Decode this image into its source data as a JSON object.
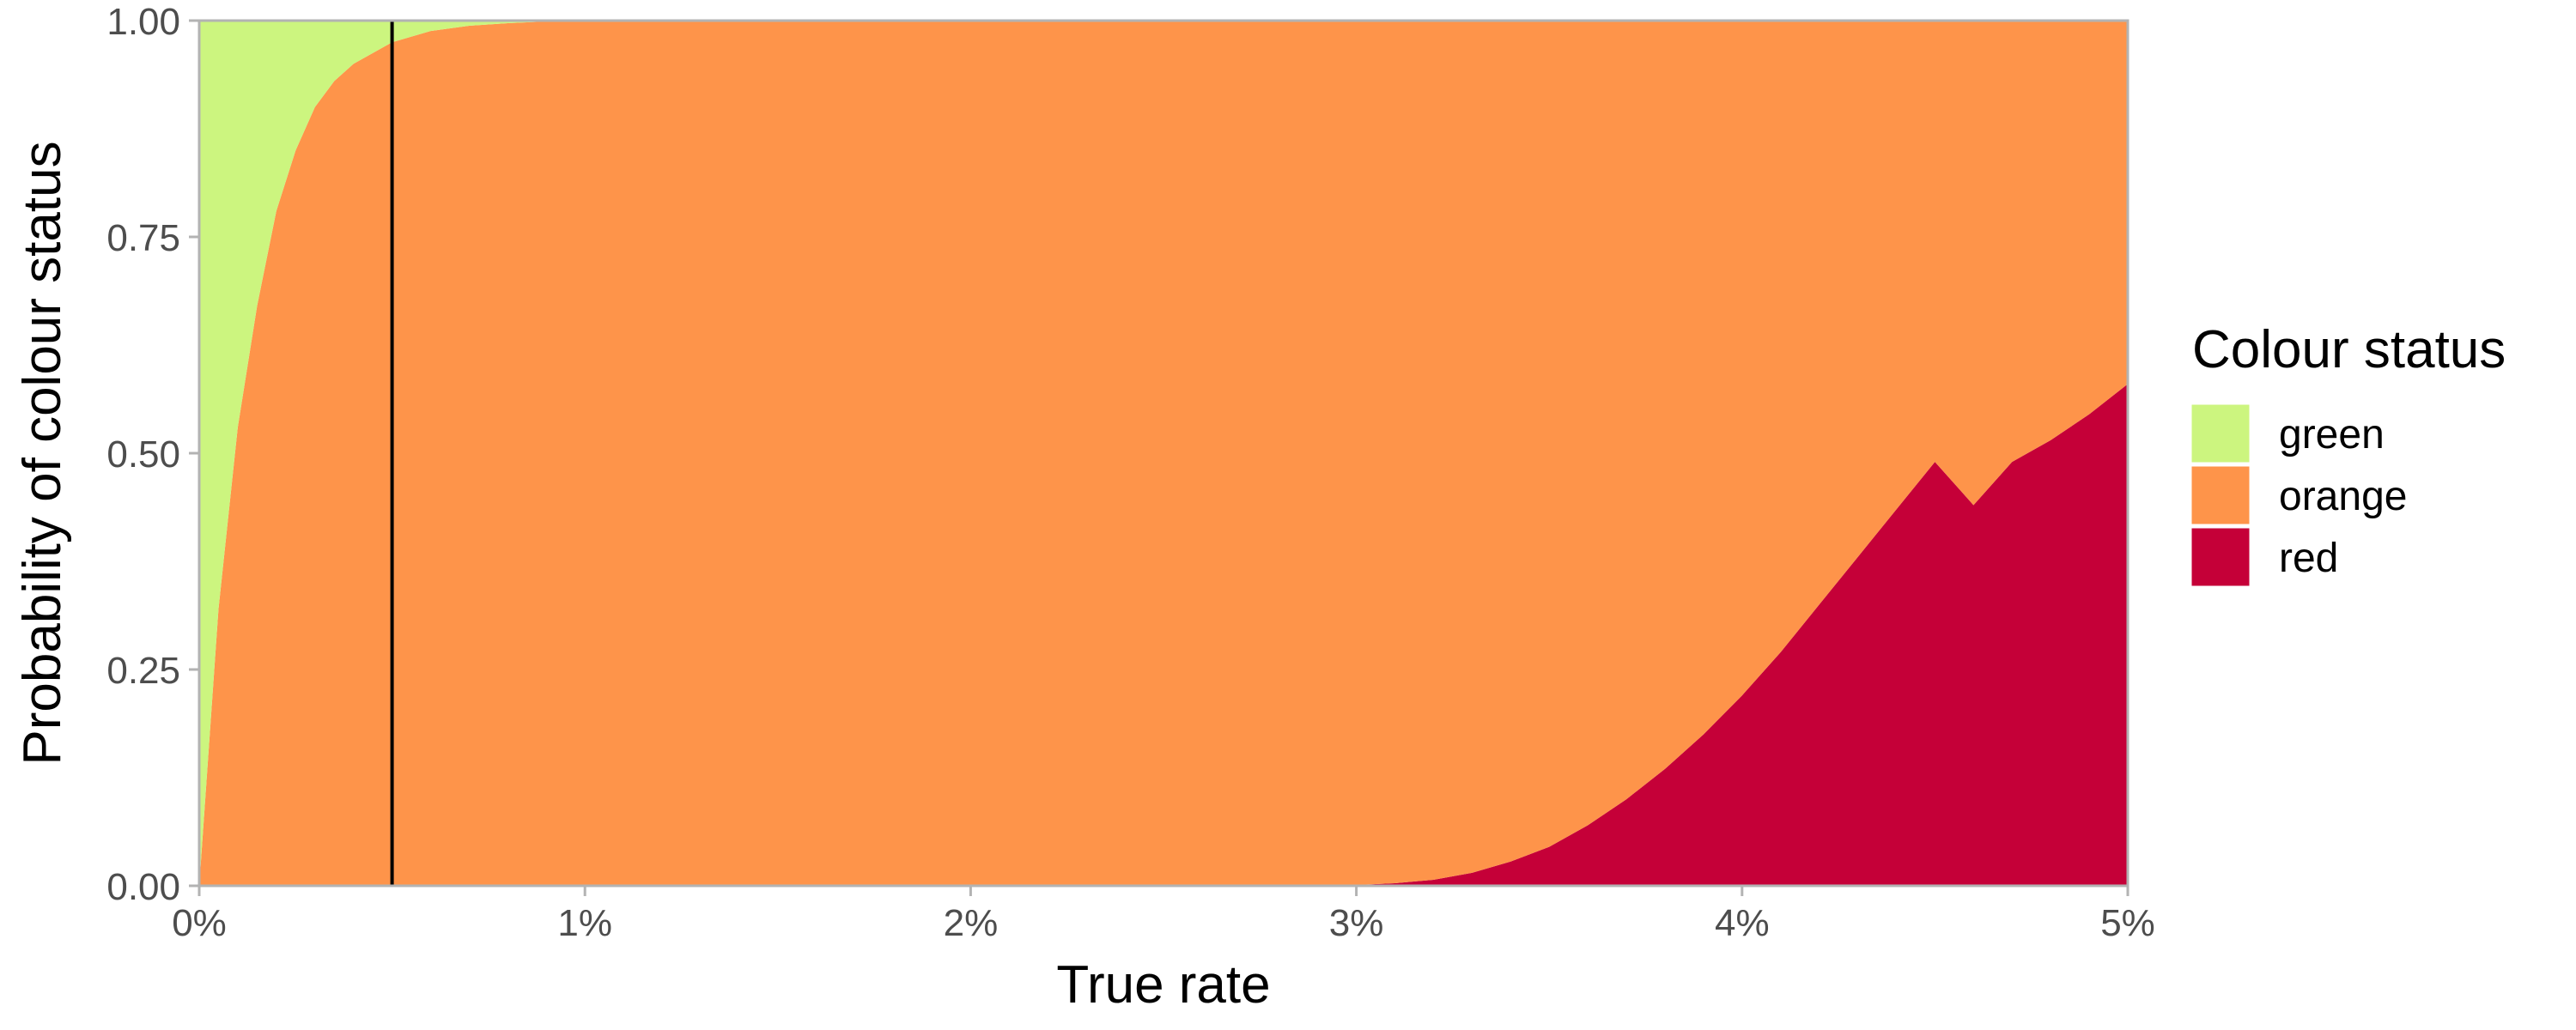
{
  "chart_data": {
    "type": "area",
    "stacked": true,
    "title": "",
    "xlabel": "True rate",
    "ylabel": "Probability of colour status",
    "xlim": [
      0,
      0.05
    ],
    "ylim": [
      0,
      1
    ],
    "x_ticks": [
      0,
      0.01,
      0.02,
      0.03,
      0.04,
      0.05
    ],
    "x_tick_labels": [
      "0%",
      "1%",
      "2%",
      "3%",
      "4%",
      "5%"
    ],
    "y_ticks": [
      0,
      0.25,
      0.5,
      0.75,
      1
    ],
    "y_tick_labels": [
      "0.00",
      "0.25",
      "0.50",
      "0.75",
      "1.00"
    ],
    "grid": false,
    "panel_border": true,
    "reference_line_x": 0.005,
    "legend": {
      "title": "Colour status",
      "position": "right",
      "entries": [
        "green",
        "orange",
        "red"
      ]
    },
    "x": [
      0,
      0.0005,
      0.001,
      0.0015,
      0.002,
      0.0025,
      0.003,
      0.0035,
      0.004,
      0.005,
      0.006,
      0.007,
      0.008,
      0.009,
      0.01,
      0.02,
      0.029,
      0.03,
      0.031,
      0.032,
      0.033,
      0.034,
      0.035,
      0.036,
      0.037,
      0.038,
      0.039,
      0.04,
      0.041,
      0.042,
      0.043,
      0.044,
      0.045,
      0.046,
      0.047,
      0.048,
      0.049,
      0.05
    ],
    "series": [
      {
        "name": "green",
        "color": "#CCF57F",
        "values": [
          1.0,
          0.68,
          0.47,
          0.33,
          0.22,
          0.15,
          0.1,
          0.07,
          0.05,
          0.025,
          0.012,
          0.006,
          0.003,
          0.001,
          0.0,
          0.0,
          0.0,
          0.0,
          0.0,
          0.0,
          0.0,
          0.0,
          0.0,
          0.0,
          0.0,
          0.0,
          0.0,
          0.0,
          0.0,
          0.0,
          0.0,
          0.0,
          0.0,
          0.0,
          0.0,
          0.0,
          0.0,
          0.0
        ]
      },
      {
        "name": "orange",
        "color": "#FE944A",
        "values": [
          0.0,
          0.32,
          0.53,
          0.67,
          0.78,
          0.85,
          0.9,
          0.93,
          0.95,
          0.975,
          0.988,
          0.994,
          0.997,
          0.999,
          1.0,
          1.0,
          1.0,
          0.999,
          0.997,
          0.993,
          0.985,
          0.972,
          0.955,
          0.93,
          0.9,
          0.865,
          0.825,
          0.78,
          0.73,
          0.675,
          0.62,
          0.565,
          0.51,
          0.56,
          0.51,
          0.485,
          0.455,
          0.42
        ]
      },
      {
        "name": "red",
        "color": "#C50038",
        "values": [
          0.0,
          0.0,
          0.0,
          0.0,
          0.0,
          0.0,
          0.0,
          0.0,
          0.0,
          0.0,
          0.0,
          0.0,
          0.0,
          0.0,
          0.0,
          0.0,
          0.0,
          0.001,
          0.003,
          0.007,
          0.015,
          0.028,
          0.045,
          0.07,
          0.1,
          0.135,
          0.175,
          0.22,
          0.27,
          0.325,
          0.38,
          0.435,
          0.49,
          0.44,
          0.49,
          0.515,
          0.545,
          0.58
        ]
      }
    ]
  }
}
